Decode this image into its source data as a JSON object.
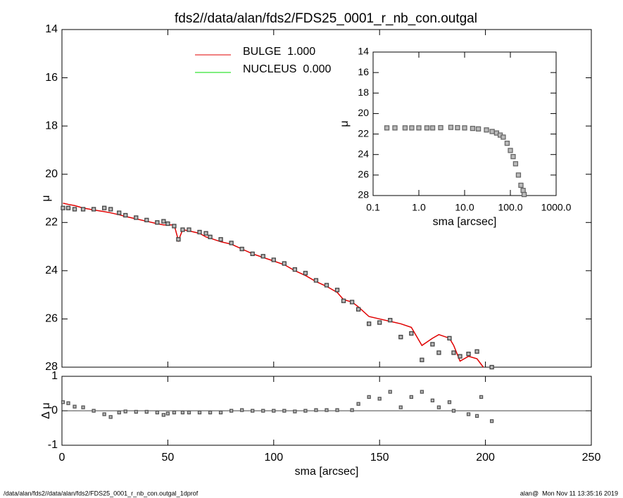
{
  "chart_data": [
    {
      "type": "profile",
      "title": "fds2//data/alan/fds2/FDS25_0001_r_nb_con.outgal",
      "y_label": "μ",
      "x": [
        0.5,
        3,
        6,
        10,
        15,
        20,
        23,
        27,
        30,
        35,
        40,
        45,
        48,
        50,
        53,
        55,
        57,
        60,
        65,
        68,
        70,
        75,
        80,
        85,
        90,
        95,
        100,
        105,
        110,
        115,
        120,
        125,
        130,
        133,
        137,
        140,
        145,
        150,
        155,
        160,
        165,
        170,
        175,
        178,
        183,
        185,
        188,
        192,
        196,
        199,
        203
      ],
      "points": {
        "color": "#8a8a8a",
        "values": [
          21.4,
          21.4,
          21.45,
          21.45,
          21.45,
          21.4,
          21.45,
          21.6,
          21.7,
          21.8,
          21.9,
          22.0,
          21.95,
          22.05,
          22.15,
          22.7,
          22.3,
          22.3,
          22.4,
          22.45,
          22.6,
          22.7,
          22.85,
          23.1,
          23.3,
          23.4,
          23.55,
          23.7,
          23.95,
          24.1,
          24.4,
          24.6,
          24.8,
          25.25,
          25.3,
          25.6,
          26.2,
          26.15,
          26.05,
          26.75,
          26.6,
          27.7,
          27.05,
          27.4,
          26.8,
          27.4,
          27.55,
          27.45,
          27.35,
          null,
          28.0
        ]
      },
      "series": [
        {
          "name": "BULGE  1.000",
          "color": "#e00000",
          "values": [
            21.2,
            21.25,
            21.3,
            21.4,
            21.48,
            21.55,
            21.6,
            21.68,
            21.75,
            21.85,
            21.95,
            22.05,
            22.1,
            22.1,
            22.1,
            22.75,
            22.3,
            22.35,
            22.45,
            22.6,
            22.65,
            22.8,
            22.9,
            23.1,
            23.3,
            23.45,
            23.6,
            23.75,
            24.0,
            24.2,
            24.45,
            24.65,
            24.9,
            25.2,
            25.3,
            25.5,
            25.9,
            26.0,
            26.1,
            26.2,
            26.35,
            27.1,
            26.8,
            26.65,
            26.8,
            27.1,
            27.75,
            27.55,
            27.65,
            28.0,
            null
          ]
        },
        {
          "name": "NUCLEUS  0.000",
          "color": "#00dd00",
          "values": [
            null,
            null,
            null,
            null,
            null,
            null,
            null,
            null,
            null,
            null,
            null,
            null,
            null,
            null,
            null,
            null,
            null,
            null,
            null,
            null,
            null,
            null,
            null,
            null,
            null,
            null,
            null,
            null,
            null,
            null,
            null,
            null,
            null,
            null,
            null,
            null,
            null,
            null,
            null,
            null,
            null,
            null,
            null,
            null,
            null,
            null,
            null,
            null,
            null,
            null,
            null
          ]
        }
      ],
      "xlim": [
        0,
        250
      ],
      "ylim": [
        28,
        14
      ],
      "yticks": [
        14,
        16,
        18,
        20,
        22,
        24,
        26,
        28
      ]
    },
    {
      "type": "residual",
      "y_label": "Δ μ",
      "x_label": "sma [arcsec]",
      "x": [
        0.5,
        3,
        6,
        10,
        15,
        20,
        23,
        27,
        30,
        35,
        40,
        45,
        48,
        50,
        53,
        57,
        60,
        65,
        70,
        75,
        80,
        85,
        90,
        95,
        100,
        105,
        110,
        115,
        120,
        125,
        130,
        137,
        140,
        145,
        150,
        155,
        160,
        165,
        170,
        175,
        178,
        183,
        185,
        192,
        196,
        198,
        203
      ],
      "color": "#555555",
      "values": [
        0.25,
        0.22,
        0.12,
        0.1,
        0.0,
        -0.1,
        -0.18,
        -0.05,
        -0.02,
        -0.03,
        -0.03,
        -0.05,
        -0.12,
        -0.08,
        -0.05,
        -0.05,
        -0.05,
        -0.05,
        -0.05,
        -0.05,
        0.0,
        0.02,
        0.0,
        0.0,
        0.0,
        0.0,
        -0.02,
        0.0,
        0.02,
        0.02,
        0.02,
        0.02,
        0.2,
        0.4,
        0.35,
        0.55,
        0.1,
        0.4,
        0.55,
        0.3,
        0.1,
        0.25,
        0.0,
        -0.1,
        -0.15,
        0.4,
        -0.3
      ],
      "xlim": [
        0,
        250
      ],
      "xticks": [
        0,
        50,
        100,
        150,
        200,
        250
      ],
      "ylim": [
        -1,
        1
      ],
      "yticks": [
        -1,
        0,
        1
      ]
    },
    {
      "type": "inset",
      "y_label": "μ",
      "x_label": "sma [arcsec]",
      "log_x": true,
      "x": [
        0.2,
        0.3,
        0.5,
        0.7,
        1,
        1.5,
        2,
        3,
        5,
        7,
        10,
        15,
        20,
        30,
        40,
        50,
        60,
        70,
        85,
        100,
        115,
        130,
        150,
        170,
        190,
        200
      ],
      "color": "#666666",
      "values": [
        21.4,
        21.4,
        21.4,
        21.4,
        21.4,
        21.4,
        21.4,
        21.38,
        21.35,
        21.38,
        21.4,
        21.45,
        21.5,
        21.6,
        21.75,
        21.9,
        22.1,
        22.3,
        22.9,
        23.6,
        24.2,
        24.9,
        26.0,
        27.0,
        27.5,
        27.9
      ],
      "xlim": [
        0.1,
        1000
      ],
      "xticks": [
        0.1,
        {
          "value": 1,
          "label": "1.0"
        },
        {
          "value": 10,
          "label": "10.0"
        },
        {
          "value": 100,
          "label": "100.0"
        },
        {
          "value": 1000,
          "label": "1000.0"
        }
      ],
      "ylim": [
        28,
        14
      ],
      "yticks": [
        14,
        16,
        18,
        20,
        22,
        24,
        26,
        28
      ]
    }
  ],
  "footer": {
    "left": "/data/alan/fds2//data/alan/fds2/FDS25_0001_r_nb_con.outgal_1dprof",
    "right": "alan@  Mon Nov 11 13:35:16 2019"
  }
}
